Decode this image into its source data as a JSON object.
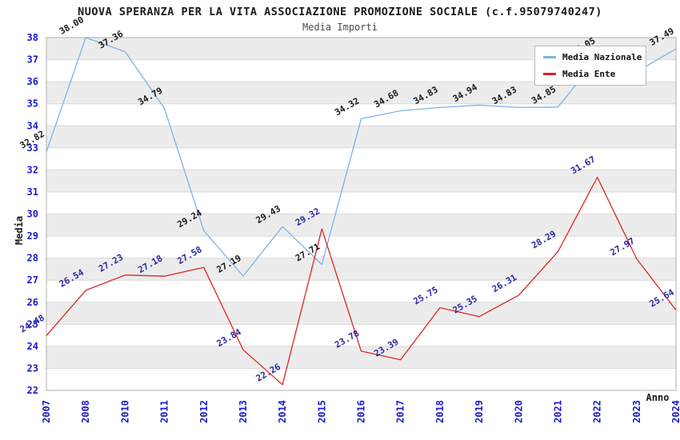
{
  "title": "NUOVA SPERANZA PER LA VITA ASSOCIAZIONE PROMOZIONE SOCIALE (c.f.95079740247)",
  "subtitle": "Media Importi",
  "chart_data": {
    "type": "line",
    "title": "NUOVA SPERANZA PER LA VITA ASSOCIAZIONE PROMOZIONE SOCIALE (c.f.95079740247)",
    "subtitle": "Media Importi",
    "xlabel": "Anno",
    "ylabel": "Media",
    "ylim": [
      22,
      38
    ],
    "ytick_step": 1,
    "grid": true,
    "legend_position": "top-right",
    "categories": [
      "2007",
      "2008",
      "2010",
      "2011",
      "2012",
      "2013",
      "2014",
      "2015",
      "2016",
      "2017",
      "2018",
      "2019",
      "2020",
      "2021",
      "2022",
      "2023",
      "2024"
    ],
    "series": [
      {
        "name": "Media Nazionale",
        "color": "#7fb2e5",
        "label_color": "#1a1a1a",
        "values": [
          32.82,
          38.0,
          37.36,
          34.79,
          29.24,
          27.19,
          29.43,
          27.71,
          34.32,
          34.68,
          34.83,
          34.94,
          34.83,
          34.85,
          37.05,
          36.45,
          37.49
        ],
        "labels": [
          "32.82",
          "38.00",
          "37.36",
          "34.79",
          "29.24",
          "27.19",
          "29.43",
          "27.71",
          "34.32",
          "34.68",
          "34.83",
          "34.94",
          "34.83",
          "34.85",
          "37.05",
          "",
          "37.49"
        ]
      },
      {
        "name": "Media Ente",
        "color": "#e02424",
        "label_color": "#2929a3",
        "values": [
          24.48,
          26.54,
          27.23,
          27.18,
          27.58,
          23.84,
          22.26,
          29.32,
          23.78,
          23.39,
          25.75,
          25.35,
          26.31,
          28.29,
          31.67,
          27.97,
          25.64
        ],
        "labels": [
          "24.48",
          "26.54",
          "27.23",
          "27.18",
          "27.58",
          "23.84",
          "22.26",
          "29.32",
          "23.78",
          "23.39",
          "25.75",
          "25.35",
          "26.31",
          "28.29",
          "31.67",
          "27.97",
          "25.64"
        ]
      }
    ],
    "colors": {
      "tick_label": "#1a1acd",
      "axis_label": "#1a1a1a",
      "band_gray": "#ececec",
      "band_white": "#ffffff",
      "gridline": "#dadada",
      "plot_border": "#b0b0b0"
    }
  }
}
